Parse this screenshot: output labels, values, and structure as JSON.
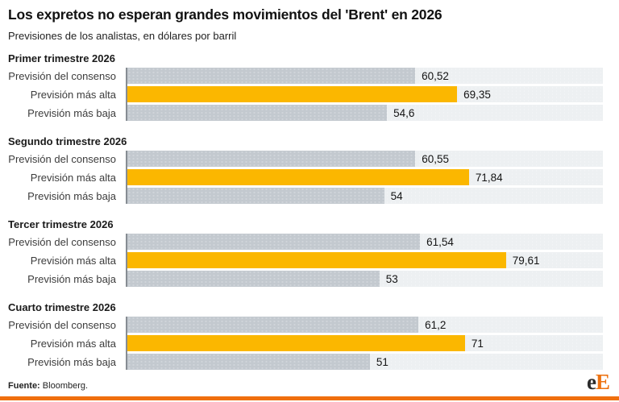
{
  "header": {
    "title": "Los expretos no esperan grandes movimientos del 'Brent' en 2026",
    "subtitle": "Previsiones de los analistas, en dólares por barril"
  },
  "chart_data": {
    "type": "bar",
    "orientation": "horizontal",
    "title": "Los expretos no esperan grandes movimientos del 'Brent' en 2026",
    "subtitle": "Previsiones de los analistas, en dólares por barril",
    "unit": "dólares por barril",
    "xlim": [
      0,
      100
    ],
    "grid": false,
    "legend": "none",
    "colors": {
      "consensus_bar": "#c3c9cf",
      "high_bar": "#fbb700",
      "low_bar": "#c3c9cf",
      "track": "#edf0f2",
      "axis": "#878d93"
    },
    "groups": [
      {
        "label": "Primer trimestre 2026",
        "rows": [
          {
            "label": "Previsión del consenso",
            "value": 60.52,
            "value_label": "60,52"
          },
          {
            "label": "Previsión más alta",
            "value": 69.35,
            "value_label": "69,35"
          },
          {
            "label": "Previsión más baja",
            "value": 54.6,
            "value_label": "54,6"
          }
        ]
      },
      {
        "label": "Segundo trimestre 2026",
        "rows": [
          {
            "label": "Previsión del consenso",
            "value": 60.55,
            "value_label": "60,55"
          },
          {
            "label": "Previsión más alta",
            "value": 71.84,
            "value_label": "71,84"
          },
          {
            "label": "Previsión más baja",
            "value": 54,
            "value_label": "54"
          }
        ]
      },
      {
        "label": "Tercer trimestre 2026",
        "rows": [
          {
            "label": "Previsión del consenso",
            "value": 61.54,
            "value_label": "61,54"
          },
          {
            "label": "Previsión más alta",
            "value": 79.61,
            "value_label": "79,61"
          },
          {
            "label": "Previsión más baja",
            "value": 53,
            "value_label": "53"
          }
        ]
      },
      {
        "label": "Cuarto trimestre 2026",
        "rows": [
          {
            "label": "Previsión del consenso",
            "value": 61.2,
            "value_label": "61,2"
          },
          {
            "label": "Previsión más alta",
            "value": 71,
            "value_label": "71"
          },
          {
            "label": "Previsión más baja",
            "value": 51,
            "value_label": "51"
          }
        ]
      }
    ]
  },
  "footer": {
    "source_label": "Fuente:",
    "source_value": "Bloomberg.",
    "logo_e": "e",
    "logo_E": "E",
    "brand_color": "#f06f0e"
  }
}
